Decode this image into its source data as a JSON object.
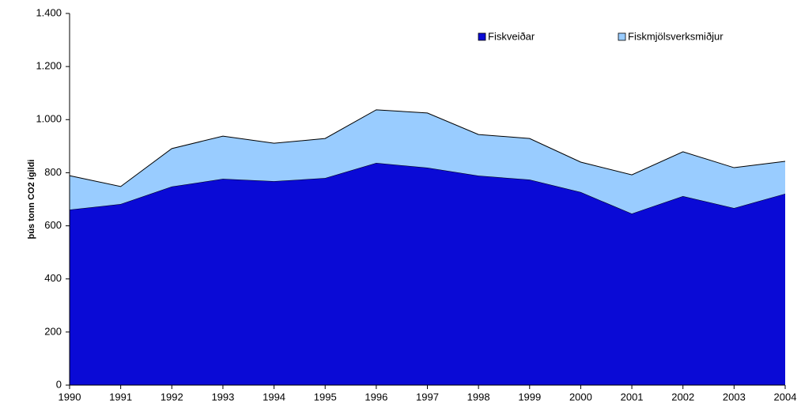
{
  "chart_data": {
    "type": "stacked_area",
    "y_axis_label": "þús tonn CO2 ígildi",
    "categories": [
      "1990",
      "1991",
      "1992",
      "1993",
      "1994",
      "1995",
      "1996",
      "1997",
      "1998",
      "1999",
      "2000",
      "2001",
      "2002",
      "2003",
      "2004"
    ],
    "series": [
      {
        "name": "Fiskveiðar",
        "color": "#0a0ad6",
        "values": [
          661,
          682,
          748,
          777,
          768,
          780,
          837,
          819,
          789,
          774,
          727,
          646,
          712,
          667,
          721
        ]
      },
      {
        "name": "Fiskmjölsverksmiðjur",
        "color": "#99ccff",
        "values": [
          128,
          66,
          143,
          161,
          143,
          149,
          200,
          206,
          155,
          155,
          113,
          146,
          167,
          152,
          122
        ]
      }
    ],
    "ylim": [
      0,
      1400
    ],
    "yticks": [
      0,
      200,
      400,
      600,
      800,
      {
        "value": 1000,
        "label": "1.000"
      },
      {
        "value": 1200,
        "label": "1.200"
      },
      {
        "value": 1400,
        "label": "1.400"
      }
    ],
    "grid": false,
    "legend": "top-right"
  }
}
